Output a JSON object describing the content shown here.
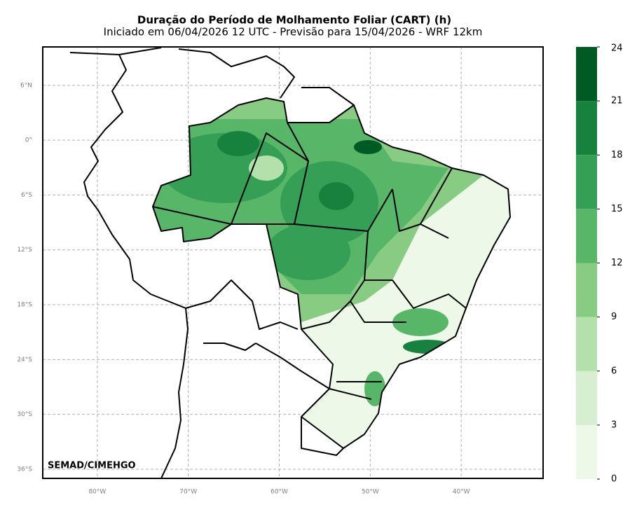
{
  "map": {
    "title": "Duração do Período de Molhamento Foliar (CART) (h)",
    "subtitle": "Iniciado em 06/04/2026 12 UTC - Previsão para 15/04/2026 - WRF 12km",
    "xlim": [
      -86,
      -31
    ],
    "ylim": [
      -37,
      10.2
    ],
    "xticks": [
      {
        "value": -80,
        "label": "80°W"
      },
      {
        "value": -70,
        "label": "70°W"
      },
      {
        "value": -60,
        "label": "60°W"
      },
      {
        "value": -50,
        "label": "50°W"
      },
      {
        "value": -40,
        "label": "40°W"
      }
    ],
    "yticks": [
      {
        "value": 6,
        "label": "6°N"
      },
      {
        "value": 0,
        "label": "0°"
      },
      {
        "value": -6,
        "label": "6°S"
      },
      {
        "value": -12,
        "label": "12°S"
      },
      {
        "value": -18,
        "label": "18°S"
      },
      {
        "value": -24,
        "label": "24°S"
      },
      {
        "value": -30,
        "label": "30°S"
      },
      {
        "value": -36,
        "label": "36°S"
      }
    ],
    "grid": true,
    "credit": "SEMAD/CIMEHGO",
    "colorbar": {
      "lim": [
        0,
        24
      ],
      "ticks": [
        0,
        3,
        6,
        9,
        12,
        15,
        18,
        21,
        24
      ],
      "colors": [
        "#edf8e9",
        "#d6efd0",
        "#b4e0ab",
        "#88cc84",
        "#58b668",
        "#35a055",
        "#17813e",
        "#005a24"
      ]
    }
  }
}
